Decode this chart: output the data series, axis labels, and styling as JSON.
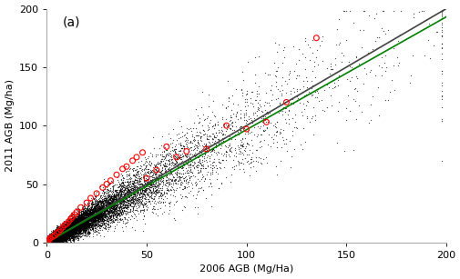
{
  "title_label": "(a)",
  "xlabel": "2006 AGB (Mg/Ha)",
  "ylabel": "2011 AGB (Mg/ha)",
  "xlim": [
    0,
    200
  ],
  "ylim": [
    0,
    200
  ],
  "xticks": [
    0,
    50,
    100,
    150,
    200
  ],
  "yticks": [
    0,
    50,
    100,
    150,
    200
  ],
  "n_lidar_points": 15000,
  "lidar_seed": 42,
  "lidar_color": "black",
  "lidar_marker_size": 0.8,
  "lidar_alpha": 0.7,
  "sfi_points_x": [
    0,
    0.3,
    0.5,
    1,
    1.5,
    2,
    3,
    4,
    5,
    6,
    7,
    8,
    9,
    10,
    11,
    12,
    13,
    14,
    15,
    17,
    20,
    22,
    25,
    28,
    30,
    32,
    35,
    38,
    40,
    43,
    45,
    48,
    50,
    55,
    60,
    65,
    70,
    80,
    90,
    100,
    110,
    120,
    135
  ],
  "sfi_points_y": [
    0,
    0.5,
    1,
    2,
    3,
    4,
    5,
    6,
    8,
    9,
    11,
    13,
    15,
    16,
    18,
    20,
    22,
    24,
    26,
    30,
    34,
    38,
    42,
    47,
    50,
    53,
    58,
    63,
    65,
    70,
    73,
    77,
    55,
    62,
    82,
    73,
    78,
    80,
    100,
    97,
    103,
    120,
    175
  ],
  "sfi_color": "red",
  "sfi_marker_size": 18,
  "sfi_linewidth": 0.8,
  "one_to_one_color": "#444444",
  "one_to_one_lw": 1.2,
  "fitted_color": "green",
  "fitted_lw": 1.2,
  "fitted_x0": 0,
  "fitted_y0": 0,
  "fitted_x1": 200,
  "fitted_y1": 193,
  "figsize": [
    5.06,
    3.07
  ],
  "dpi": 100,
  "bg_color": "white",
  "spine_color": "#aaaaaa",
  "spine_lw": 0.8
}
